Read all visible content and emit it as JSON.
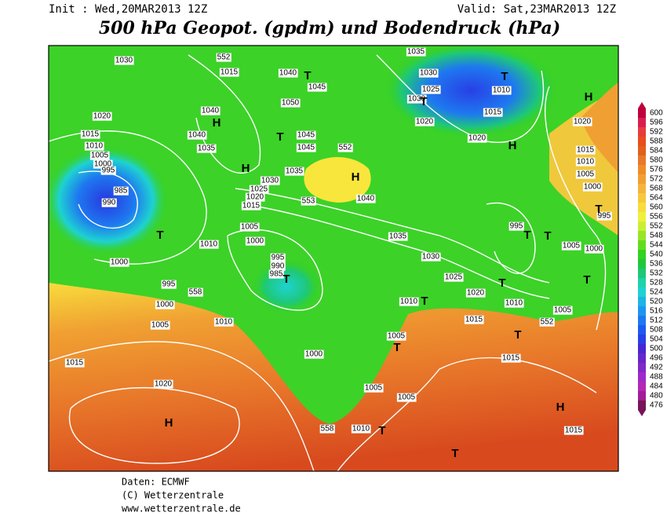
{
  "header": {
    "init": "Init : Wed,20MAR2013 12Z",
    "valid": "Valid: Sat,23MAR2013 12Z",
    "title": "500 hPa Geopot. (gpdm) und Bodendruck (hPa)"
  },
  "map": {
    "isobar_labels": [
      "1030",
      "552",
      "1015",
      "1040",
      "1045",
      "1050",
      "1040",
      "1040",
      "1035",
      "1045",
      "1045",
      "552",
      "1035",
      "1030",
      "1025",
      "1020",
      "1015",
      "553",
      "1040",
      "1020",
      "1015",
      "1010",
      "1005",
      "1000",
      "995",
      "985",
      "990",
      "1005",
      "1000",
      "1010",
      "995",
      "990",
      "985",
      "1000",
      "995",
      "558",
      "1000",
      "1005",
      "1010",
      "1015",
      "1020",
      "1000",
      "1005",
      "1005",
      "558",
      "1010",
      "1035",
      "1030",
      "1025",
      "1030",
      "1020",
      "1010",
      "1015",
      "1020",
      "1020",
      "1015",
      "1010",
      "1005",
      "1000",
      "995",
      "995",
      "1035",
      "1030",
      "1025",
      "1020",
      "1010",
      "1015",
      "1010",
      "1005",
      "552",
      "1005",
      "1000",
      "1005",
      "1015",
      "1015"
    ],
    "pressure_centers": [
      "H",
      "H",
      "H",
      "H",
      "H",
      "H",
      "H",
      "T",
      "T",
      "T",
      "T",
      "T",
      "T",
      "T",
      "T",
      "T",
      "T",
      "T",
      "T",
      "T",
      "T",
      "T",
      "T"
    ]
  },
  "colorbar": {
    "values": [
      600,
      596,
      592,
      588,
      584,
      580,
      576,
      572,
      568,
      564,
      560,
      556,
      552,
      548,
      544,
      540,
      536,
      532,
      528,
      524,
      520,
      516,
      512,
      508,
      504,
      500,
      496,
      492,
      488,
      484,
      480,
      476
    ],
    "colors": [
      "#c0003c",
      "#d81e50",
      "#e83c3c",
      "#e84e1e",
      "#e0601e",
      "#e8782a",
      "#f08c28",
      "#f0a032",
      "#f5b43c",
      "#f8c83c",
      "#f8dc3c",
      "#f0f03c",
      "#c8f032",
      "#96e628",
      "#64dc1e",
      "#32d21e",
      "#1ec83c",
      "#1ec878",
      "#1ed2aa",
      "#1ed2d2",
      "#1eb4e6",
      "#1e96f0",
      "#1e78f0",
      "#1e5af0",
      "#2840e6",
      "#4628d2",
      "#6428c8",
      "#8228c8",
      "#a028c8",
      "#b428b4",
      "#a01e96",
      "#78145a"
    ]
  },
  "footer": {
    "source": "Daten: ECMWF",
    "copyright": "(C) Wetterzentrale",
    "url": "www.wetterzentrale.de"
  }
}
